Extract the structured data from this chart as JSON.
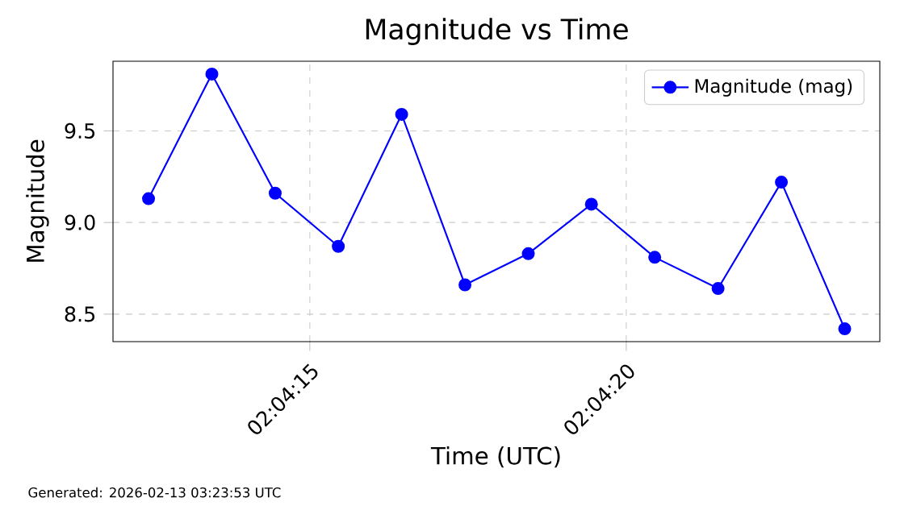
{
  "chart_data": {
    "type": "line",
    "title": "Magnitude vs Time",
    "xlabel": "Time (UTC)",
    "ylabel": "Magnitude",
    "x": [
      2.070125,
      2.070403,
      2.070681,
      2.070958,
      2.071236,
      2.071514,
      2.071792,
      2.072069,
      2.072347,
      2.072625,
      2.072903,
      2.073181
    ],
    "series": [
      {
        "name": "Magnitude (mag)",
        "color": "#0000ff",
        "values": [
          9.13,
          9.81,
          9.16,
          8.87,
          9.59,
          8.66,
          8.83,
          9.1,
          8.81,
          8.64,
          9.22,
          8.42
        ]
      }
    ],
    "xlim": [
      2.069969,
      2.073335
    ],
    "xticks": [
      {
        "value": 2.070833,
        "label": "02:04:15"
      },
      {
        "value": 2.072222,
        "label": "02:04:20"
      }
    ],
    "ylim": [
      8.35,
      9.88
    ],
    "yticks": [
      8.5,
      {
        "value": 9,
        "label": "9.0"
      },
      9.5
    ],
    "grid": true,
    "legend": "top right",
    "marker": "circle",
    "annotations": [
      "Generated: 2026-02-13 03:23:53 UTC"
    ]
  }
}
